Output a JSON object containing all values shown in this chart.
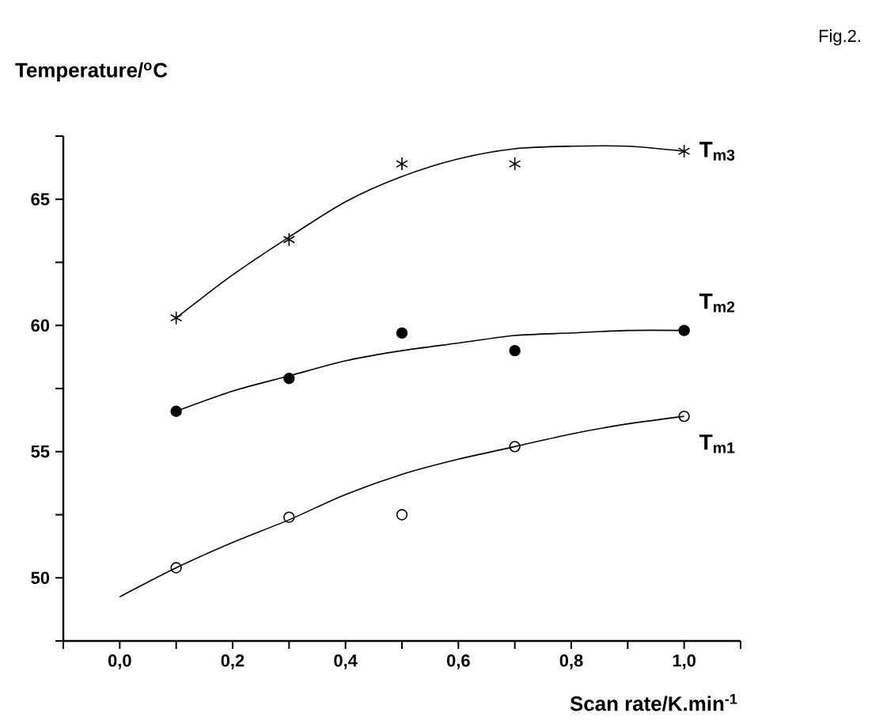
{
  "chart_data": {
    "type": "scatter",
    "ylabel": "Temperature/$^{o}$C",
    "xlabel": "Scan rate/K.min$^{-1}$",
    "annotations": [
      "Fig.2."
    ],
    "x": [
      0.1,
      0.3,
      0.5,
      0.7,
      1.0
    ],
    "xlim": [
      -0.1,
      1.1
    ],
    "ylim": [
      47.5,
      67.5
    ],
    "xticks": [
      {
        "value": -0.1,
        "label": null
      },
      {
        "value": 0.0,
        "label": "0,0"
      },
      {
        "value": 0.1,
        "label": null
      },
      {
        "value": 0.2,
        "label": "0,2"
      },
      {
        "value": 0.3,
        "label": null
      },
      {
        "value": 0.4,
        "label": "0,4"
      },
      {
        "value": 0.5,
        "label": null
      },
      {
        "value": 0.6,
        "label": "0,6"
      },
      {
        "value": 0.7,
        "label": null
      },
      {
        "value": 0.8,
        "label": "0,8"
      },
      {
        "value": 0.9,
        "label": null
      },
      {
        "value": 1.0,
        "label": "1,0"
      },
      {
        "value": 1.1,
        "label": null
      }
    ],
    "yticks": [
      {
        "value": 47.5,
        "label": null
      },
      50,
      {
        "value": 52.5,
        "label": null
      },
      55,
      {
        "value": 57.5,
        "label": null
      },
      60,
      {
        "value": 62.5,
        "label": null
      },
      65,
      {
        "value": 67.5,
        "label": null
      }
    ],
    "grid": false,
    "legend": false,
    "series": [
      {
        "name": "T$_{m3}$",
        "color": "#000000",
        "marker": "cross",
        "values": [
          60.3,
          63.4,
          66.4,
          66.4,
          66.9
        ]
      },
      {
        "name": "T$_{m2}$",
        "color": "#000000",
        "marker": "circle",
        "values": [
          56.6,
          57.9,
          59.7,
          59.0,
          59.8
        ]
      },
      {
        "name": "T$_{m1}$",
        "color": "#000000",
        "marker": "open circle",
        "values": [
          50.4,
          52.4,
          52.5,
          55.2,
          56.4
        ]
      },
      {
        "type": "line",
        "color": "#000000",
        "marker": "none",
        "x": [
          0.1,
          0.2,
          0.3,
          0.4,
          0.5,
          0.6,
          0.7,
          0.8,
          0.9,
          1.0
        ],
        "values": [
          60.3,
          62.0,
          63.5,
          64.9,
          65.9,
          66.6,
          67.0,
          67.1,
          67.1,
          66.9
        ]
      },
      {
        "type": "line",
        "color": "#000000",
        "marker": "none",
        "x": [
          0.1,
          0.2,
          0.3,
          0.4,
          0.5,
          0.6,
          0.7,
          0.8,
          0.9,
          1.0
        ],
        "values": [
          56.6,
          57.4,
          58.0,
          58.6,
          59.0,
          59.3,
          59.6,
          59.7,
          59.8,
          59.8
        ]
      },
      {
        "type": "line",
        "color": "#000000",
        "marker": "none",
        "x": [
          0.0,
          0.1,
          0.2,
          0.3,
          0.4,
          0.5,
          0.6,
          0.7,
          0.8,
          0.9,
          1.0
        ],
        "values": [
          49.25,
          50.4,
          51.4,
          52.3,
          53.3,
          54.1,
          54.7,
          55.2,
          55.7,
          56.1,
          56.4
        ]
      }
    ]
  }
}
